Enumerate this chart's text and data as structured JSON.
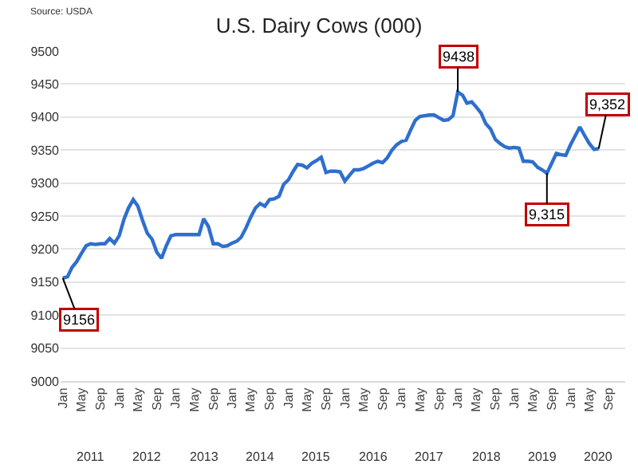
{
  "chart_data": {
    "type": "line",
    "title": "U.S. Dairy Cows (000)",
    "x": [
      "2011-01",
      "2011-02",
      "2011-03",
      "2011-04",
      "2011-05",
      "2011-06",
      "2011-07",
      "2011-08",
      "2011-09",
      "2011-10",
      "2011-11",
      "2011-12",
      "2012-01",
      "2012-02",
      "2012-03",
      "2012-04",
      "2012-05",
      "2012-06",
      "2012-07",
      "2012-08",
      "2012-09",
      "2012-10",
      "2012-11",
      "2012-12",
      "2013-01",
      "2013-02",
      "2013-03",
      "2013-04",
      "2013-05",
      "2013-06",
      "2013-07",
      "2013-08",
      "2013-09",
      "2013-10",
      "2013-11",
      "2013-12",
      "2014-01",
      "2014-02",
      "2014-03",
      "2014-04",
      "2014-05",
      "2014-06",
      "2014-07",
      "2014-08",
      "2014-09",
      "2014-10",
      "2014-11",
      "2014-12",
      "2015-01",
      "2015-02",
      "2015-03",
      "2015-04",
      "2015-05",
      "2015-06",
      "2015-07",
      "2015-08",
      "2015-09",
      "2015-10",
      "2015-11",
      "2015-12",
      "2016-01",
      "2016-02",
      "2016-03",
      "2016-04",
      "2016-05",
      "2016-06",
      "2016-07",
      "2016-08",
      "2016-09",
      "2016-10",
      "2016-11",
      "2016-12",
      "2017-01",
      "2017-02",
      "2017-03",
      "2017-04",
      "2017-05",
      "2017-06",
      "2017-07",
      "2017-08",
      "2017-09",
      "2017-10",
      "2017-11",
      "2017-12",
      "2018-01",
      "2018-02",
      "2018-03",
      "2018-04",
      "2018-05",
      "2018-06",
      "2018-07",
      "2018-08",
      "2018-09",
      "2018-10",
      "2018-11",
      "2018-12",
      "2019-01",
      "2019-02",
      "2019-03",
      "2019-04",
      "2019-05",
      "2019-06",
      "2019-07",
      "2019-08",
      "2019-09",
      "2019-10",
      "2019-11",
      "2019-12",
      "2020-01",
      "2020-02",
      "2020-03",
      "2020-04",
      "2020-05",
      "2020-06",
      "2020-07"
    ],
    "series": [
      {
        "color": "#2e6fce",
        "values": [
          9156,
          9158,
          9172,
          9181,
          9193,
          9205,
          9208,
          9207,
          9208,
          9208,
          9216,
          9209,
          9220,
          9245,
          9262,
          9275,
          9265,
          9243,
          9224,
          9215,
          9195,
          9186,
          9205,
          9220,
          9222,
          9222,
          9222,
          9222,
          9222,
          9222,
          9246,
          9234,
          9208,
          9208,
          9204,
          9205,
          9209,
          9212,
          9218,
          9232,
          9248,
          9262,
          9269,
          9265,
          9275,
          9276,
          9280,
          9298,
          9305,
          9318,
          9328,
          9327,
          9323,
          9330,
          9334,
          9339,
          9316,
          9318,
          9318,
          9317,
          9303,
          9312,
          9320,
          9320,
          9322,
          9326,
          9330,
          9333,
          9331,
          9338,
          9350,
          9358,
          9363,
          9365,
          9380,
          9395,
          9401,
          9402,
          9403,
          9403,
          9399,
          9395,
          9396,
          9402,
          9438,
          9433,
          9421,
          9423,
          9415,
          9406,
          9390,
          9382,
          9366,
          9360,
          9355,
          9353,
          9354,
          9353,
          9333,
          9333,
          9332,
          9324,
          9320,
          9315,
          9330,
          9345,
          9343,
          9342,
          9358,
          9372,
          9385,
          9372,
          9360,
          9351,
          9352
        ]
      }
    ],
    "xlim": [
      "2010-12-18",
      "2020-12-20"
    ],
    "xticks": [
      {
        "value": "2011-01",
        "label": "Jan"
      },
      {
        "value": "2011-05",
        "label": "May"
      },
      {
        "value": "2011-09",
        "label": "Sep"
      },
      {
        "value": "2012-01",
        "label": "Jan"
      },
      {
        "value": "2012-05",
        "label": "May"
      },
      {
        "value": "2012-09",
        "label": "Sep"
      },
      {
        "value": "2013-01",
        "label": "Jan"
      },
      {
        "value": "2013-05",
        "label": "May"
      },
      {
        "value": "2013-09",
        "label": "Sep"
      },
      {
        "value": "2014-01",
        "label": "Jan"
      },
      {
        "value": "2014-05",
        "label": "May"
      },
      {
        "value": "2014-09",
        "label": "Sep"
      },
      {
        "value": "2015-01",
        "label": "Jan"
      },
      {
        "value": "2015-05",
        "label": "May"
      },
      {
        "value": "2015-09",
        "label": "Sep"
      },
      {
        "value": "2016-01",
        "label": "Jan"
      },
      {
        "value": "2016-05",
        "label": "May"
      },
      {
        "value": "2016-09",
        "label": "Sep"
      },
      {
        "value": "2017-01",
        "label": "Jan"
      },
      {
        "value": "2017-05",
        "label": "May"
      },
      {
        "value": "2017-09",
        "label": "Sep"
      },
      {
        "value": "2018-01",
        "label": "Jan"
      },
      {
        "value": "2018-05",
        "label": "May"
      },
      {
        "value": "2018-09",
        "label": "Sep"
      },
      {
        "value": "2019-01",
        "label": "Jan"
      },
      {
        "value": "2019-05",
        "label": "May"
      },
      {
        "value": "2019-09",
        "label": "Sep"
      },
      {
        "value": "2020-01",
        "label": "Jan"
      },
      {
        "value": "2020-05",
        "label": "May"
      },
      {
        "value": "2020-09",
        "label": "Sep"
      }
    ],
    "ylim": [
      9000,
      9500
    ],
    "yticks": [
      9000,
      9050,
      9100,
      9150,
      9200,
      9250,
      9300,
      9350,
      9400,
      9450,
      9500
    ],
    "grid": "y",
    "annotations": [
      "Source: USDA",
      {
        "text": "9156",
        "x": "2011-01",
        "y": 9156
      },
      {
        "text": "9438",
        "x": "2018-01",
        "y": 9438
      },
      {
        "text": "9,315",
        "x": "2019-08",
        "y": 9315
      },
      {
        "text": "9,352",
        "x": "2020-07",
        "y": 9352
      },
      "2011",
      "2012",
      "2013",
      "2014",
      "2015",
      "2016",
      "2017",
      "2018",
      "2019",
      "2020"
    ]
  }
}
